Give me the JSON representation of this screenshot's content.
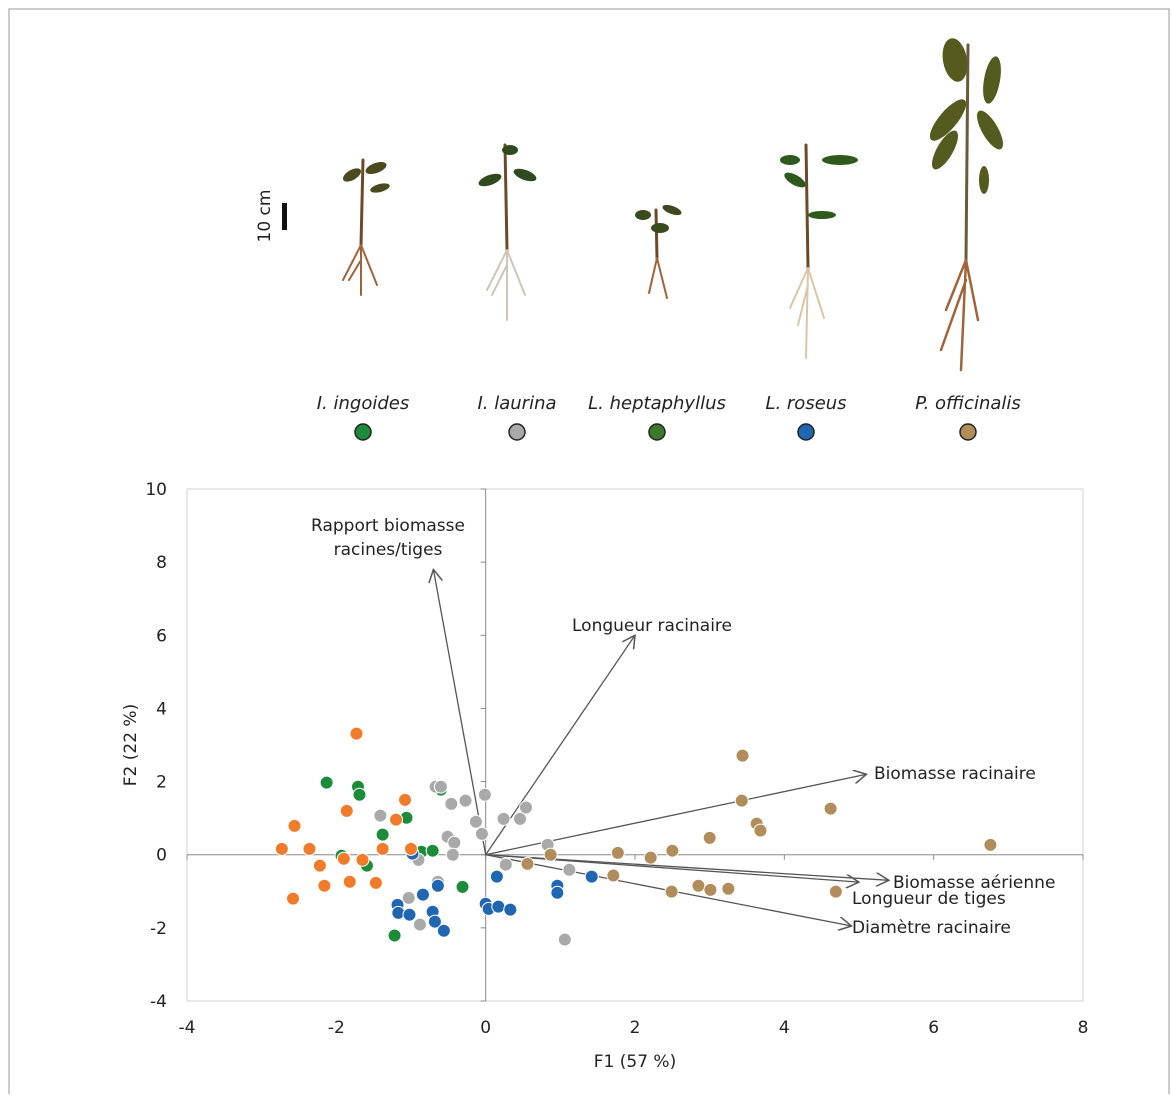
{
  "chart_data": {
    "type": "scatter",
    "scale_bar": "10 cm",
    "xlabel": "F1 (57 %)",
    "ylabel": "F2 (22 %)",
    "xlim": [
      -4,
      8
    ],
    "ylim": [
      -4,
      10
    ],
    "xticks": [
      -4,
      -2,
      0,
      2,
      4,
      6,
      8
    ],
    "yticks": [
      -4,
      -2,
      0,
      2,
      4,
      6,
      8,
      10
    ],
    "series": [
      {
        "name": "I. ingoides",
        "color": "#1c8c3b",
        "x": [
          -2.13,
          -1.71,
          -1.69,
          -1.38,
          -1.93,
          -1.59,
          -1.06,
          -0.86,
          -0.71,
          -0.6,
          -0.31,
          -1.22
        ],
        "y": [
          1.97,
          1.86,
          1.64,
          0.55,
          -0.03,
          -0.3,
          1.01,
          0.08,
          0.11,
          1.78,
          -0.88,
          -2.21
        ]
      },
      {
        "name": "I. laurina",
        "color": "#a9a9a9",
        "x": [
          -1.41,
          -0.67,
          -0.6,
          -0.46,
          -0.27,
          -0.13,
          -0.01,
          -0.51,
          -0.42,
          -0.44,
          -0.05,
          0.24,
          0.46,
          0.54,
          0.83,
          0.27,
          1.12,
          -0.9,
          -1.03,
          -0.88,
          -0.64,
          1.06
        ],
        "y": [
          1.07,
          1.86,
          1.86,
          1.39,
          1.48,
          0.9,
          1.64,
          0.49,
          0.33,
          0.0,
          0.57,
          0.98,
          0.98,
          1.29,
          0.27,
          -0.27,
          -0.41,
          -0.14,
          -1.18,
          -1.91,
          -0.74,
          -2.32
        ]
      },
      {
        "name": "L. heptaphyllus",
        "color": "#3b7a2c",
        "x": [],
        "y": []
      },
      {
        "name": "L. roseus",
        "color": "#2166b0",
        "x": [
          -0.98,
          -0.64,
          -0.84,
          -1.18,
          -1.17,
          -1.02,
          -0.71,
          -0.68,
          -0.56,
          0.0,
          0.04,
          0.17,
          0.33,
          0.15,
          0.96,
          0.96,
          1.42
        ],
        "y": [
          0.03,
          -0.85,
          -1.09,
          -1.37,
          -1.59,
          -1.64,
          -1.56,
          -1.83,
          -2.08,
          -1.34,
          -1.48,
          -1.42,
          -1.5,
          -0.6,
          -0.85,
          -1.04,
          -0.6
        ]
      },
      {
        "name": "P. officinalis",
        "color": "#b08d5a",
        "x": [
          3.44,
          3.43,
          3.63,
          3.68,
          4.62,
          6.76,
          3.0,
          2.5,
          2.21,
          1.77,
          1.71,
          0.87,
          0.56,
          2.49,
          2.85,
          3.01,
          3.25,
          4.69
        ],
        "y": [
          2.71,
          1.48,
          0.85,
          0.66,
          1.26,
          0.27,
          0.46,
          0.11,
          -0.08,
          0.05,
          -0.57,
          0.0,
          -0.25,
          -1.01,
          -0.85,
          -0.96,
          -0.93,
          -1.01
        ]
      },
      {
        "color": "#f07b2a",
        "x": [
          -2.73,
          -2.56,
          -2.36,
          -2.58,
          -2.22,
          -2.16,
          -1.9,
          -1.82,
          -1.73,
          -1.86,
          -1.65,
          -1.47,
          -1.38,
          -1.2,
          -1.08,
          -1.0
        ],
        "y": [
          0.16,
          0.79,
          0.16,
          -1.2,
          -0.3,
          -0.85,
          -0.11,
          -0.74,
          3.31,
          1.2,
          -0.14,
          -0.77,
          0.16,
          0.96,
          1.5,
          0.16
        ]
      }
    ],
    "vectors": [
      {
        "label": [
          "Rapport biomasse",
          "racines/tiges"
        ],
        "x": -0.7,
        "y": 7.8
      },
      {
        "label": [
          "Longueur racinaire"
        ],
        "x": 2.0,
        "y": 6.0
      },
      {
        "label": [
          "Biomasse racinaire"
        ],
        "x": 5.1,
        "y": 2.2
      },
      {
        "label": [
          "Biomasse aérienne"
        ],
        "x": 5.4,
        "y": -0.7
      },
      {
        "label": [
          "Longueur de tiges"
        ],
        "x": 5.0,
        "y": -0.75
      },
      {
        "label": [
          "Diamètre racinaire"
        ],
        "x": 4.9,
        "y": -1.95
      }
    ]
  }
}
